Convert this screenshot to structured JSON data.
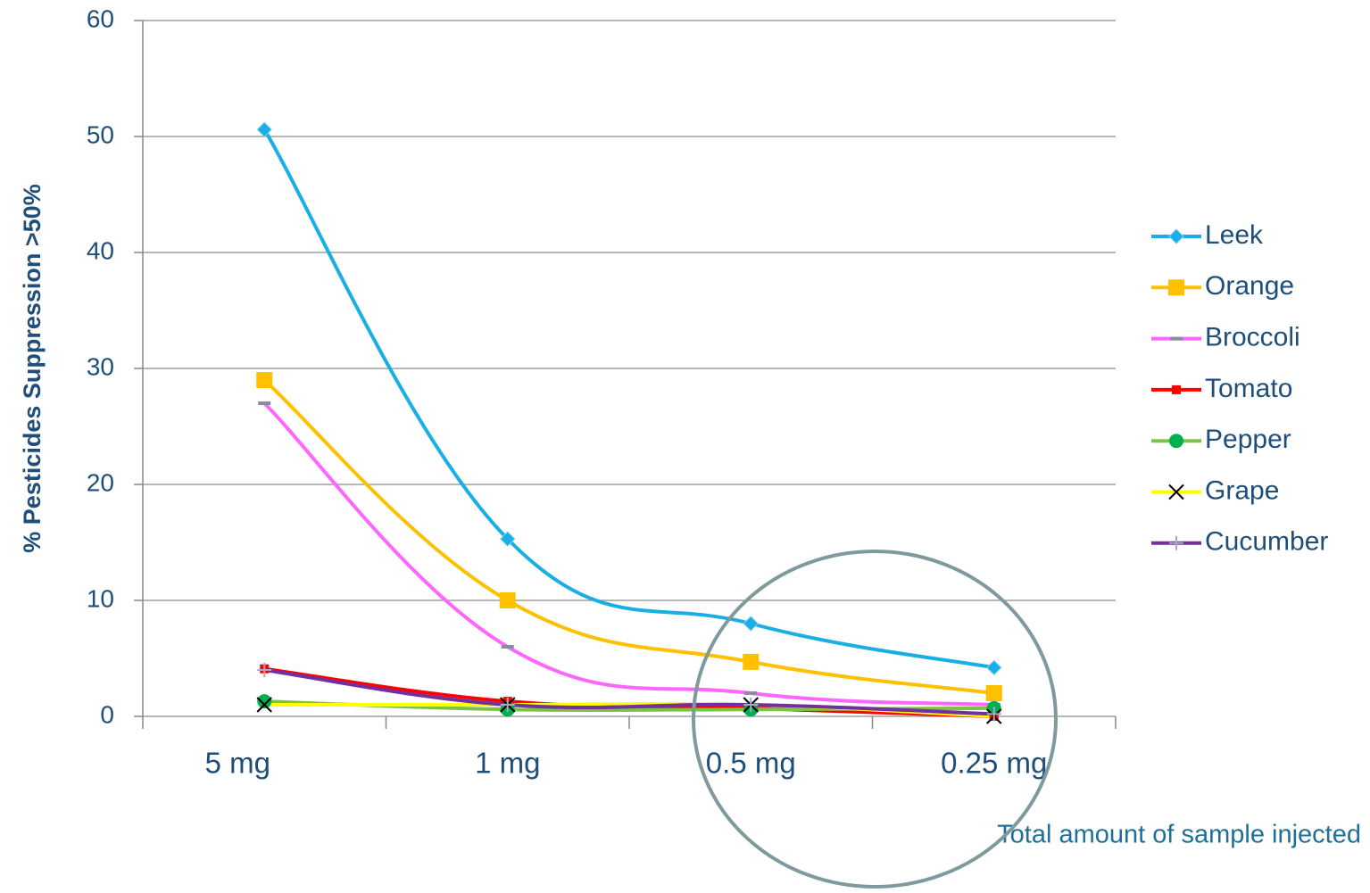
{
  "chart_data": {
    "type": "line",
    "y_label": "% Pesticides Suppression >50%",
    "x_label": "Total amount of sample injected",
    "categories": [
      "5 mg",
      "1 mg",
      "0.5 mg",
      "0.25 mg"
    ],
    "ylim": [
      0,
      60
    ],
    "yticks": [
      0,
      10,
      20,
      30,
      40,
      50,
      60
    ],
    "grid": true,
    "legend": "right",
    "series": [
      {
        "name": "Leek",
        "color": "#1aaee6",
        "marker": "diamond",
        "values": [
          50.6,
          15.3,
          8,
          4.2
        ]
      },
      {
        "name": "Orange",
        "color": "#ffc000",
        "marker": "square",
        "values": [
          29,
          10,
          4.7,
          2
        ]
      },
      {
        "name": "Broccoli",
        "color": "#ff66ff",
        "marker": "dash",
        "values": [
          27,
          6,
          2,
          1
        ]
      },
      {
        "name": "Tomato",
        "color": "#ff0000",
        "marker": "small-square",
        "values": [
          4.1,
          1.3,
          0.7,
          0
        ]
      },
      {
        "name": "Pepper",
        "color": "#7dc242",
        "marker": "circle",
        "values": [
          1.3,
          0.6,
          0.6,
          0.7
        ]
      },
      {
        "name": "Grape",
        "color": "#ffff00",
        "marker": "x",
        "values": [
          1,
          1,
          1,
          0
        ]
      },
      {
        "name": "Cucumber",
        "color": "#7030a0",
        "marker": "plus",
        "values": [
          4,
          1,
          1,
          0.2
        ]
      }
    ]
  }
}
